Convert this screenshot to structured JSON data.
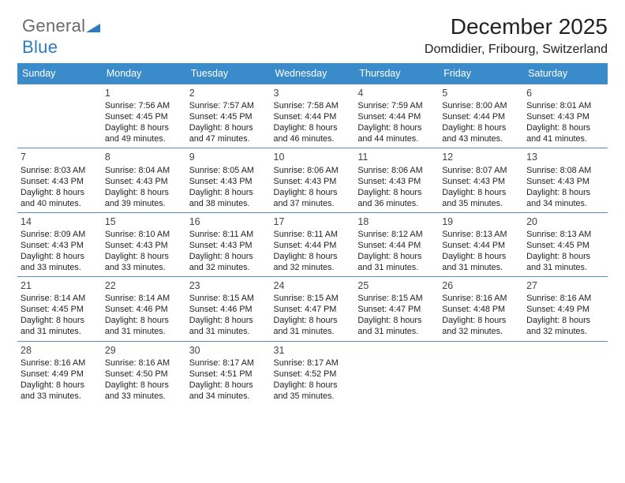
{
  "logo": {
    "g1": "General",
    "g2": "Blue"
  },
  "header": {
    "title": "December 2025",
    "subtitle": "Domdidier, Fribourg, Switzerland"
  },
  "colors": {
    "header_bg": "#3a8bc9",
    "header_fg": "#ffffff",
    "row_border": "#5a8fb9",
    "logo_blue": "#2a7bbf",
    "logo_gray": "#6a6a6a"
  },
  "day_headers": [
    "Sunday",
    "Monday",
    "Tuesday",
    "Wednesday",
    "Thursday",
    "Friday",
    "Saturday"
  ],
  "weeks": [
    [
      {
        "n": "",
        "sr": "",
        "ss": "",
        "dl": ""
      },
      {
        "n": "1",
        "sr": "Sunrise: 7:56 AM",
        "ss": "Sunset: 4:45 PM",
        "dl": "Daylight: 8 hours and 49 minutes."
      },
      {
        "n": "2",
        "sr": "Sunrise: 7:57 AM",
        "ss": "Sunset: 4:45 PM",
        "dl": "Daylight: 8 hours and 47 minutes."
      },
      {
        "n": "3",
        "sr": "Sunrise: 7:58 AM",
        "ss": "Sunset: 4:44 PM",
        "dl": "Daylight: 8 hours and 46 minutes."
      },
      {
        "n": "4",
        "sr": "Sunrise: 7:59 AM",
        "ss": "Sunset: 4:44 PM",
        "dl": "Daylight: 8 hours and 44 minutes."
      },
      {
        "n": "5",
        "sr": "Sunrise: 8:00 AM",
        "ss": "Sunset: 4:44 PM",
        "dl": "Daylight: 8 hours and 43 minutes."
      },
      {
        "n": "6",
        "sr": "Sunrise: 8:01 AM",
        "ss": "Sunset: 4:43 PM",
        "dl": "Daylight: 8 hours and 41 minutes."
      }
    ],
    [
      {
        "n": "7",
        "sr": "Sunrise: 8:03 AM",
        "ss": "Sunset: 4:43 PM",
        "dl": "Daylight: 8 hours and 40 minutes."
      },
      {
        "n": "8",
        "sr": "Sunrise: 8:04 AM",
        "ss": "Sunset: 4:43 PM",
        "dl": "Daylight: 8 hours and 39 minutes."
      },
      {
        "n": "9",
        "sr": "Sunrise: 8:05 AM",
        "ss": "Sunset: 4:43 PM",
        "dl": "Daylight: 8 hours and 38 minutes."
      },
      {
        "n": "10",
        "sr": "Sunrise: 8:06 AM",
        "ss": "Sunset: 4:43 PM",
        "dl": "Daylight: 8 hours and 37 minutes."
      },
      {
        "n": "11",
        "sr": "Sunrise: 8:06 AM",
        "ss": "Sunset: 4:43 PM",
        "dl": "Daylight: 8 hours and 36 minutes."
      },
      {
        "n": "12",
        "sr": "Sunrise: 8:07 AM",
        "ss": "Sunset: 4:43 PM",
        "dl": "Daylight: 8 hours and 35 minutes."
      },
      {
        "n": "13",
        "sr": "Sunrise: 8:08 AM",
        "ss": "Sunset: 4:43 PM",
        "dl": "Daylight: 8 hours and 34 minutes."
      }
    ],
    [
      {
        "n": "14",
        "sr": "Sunrise: 8:09 AM",
        "ss": "Sunset: 4:43 PM",
        "dl": "Daylight: 8 hours and 33 minutes."
      },
      {
        "n": "15",
        "sr": "Sunrise: 8:10 AM",
        "ss": "Sunset: 4:43 PM",
        "dl": "Daylight: 8 hours and 33 minutes."
      },
      {
        "n": "16",
        "sr": "Sunrise: 8:11 AM",
        "ss": "Sunset: 4:43 PM",
        "dl": "Daylight: 8 hours and 32 minutes."
      },
      {
        "n": "17",
        "sr": "Sunrise: 8:11 AM",
        "ss": "Sunset: 4:44 PM",
        "dl": "Daylight: 8 hours and 32 minutes."
      },
      {
        "n": "18",
        "sr": "Sunrise: 8:12 AM",
        "ss": "Sunset: 4:44 PM",
        "dl": "Daylight: 8 hours and 31 minutes."
      },
      {
        "n": "19",
        "sr": "Sunrise: 8:13 AM",
        "ss": "Sunset: 4:44 PM",
        "dl": "Daylight: 8 hours and 31 minutes."
      },
      {
        "n": "20",
        "sr": "Sunrise: 8:13 AM",
        "ss": "Sunset: 4:45 PM",
        "dl": "Daylight: 8 hours and 31 minutes."
      }
    ],
    [
      {
        "n": "21",
        "sr": "Sunrise: 8:14 AM",
        "ss": "Sunset: 4:45 PM",
        "dl": "Daylight: 8 hours and 31 minutes."
      },
      {
        "n": "22",
        "sr": "Sunrise: 8:14 AM",
        "ss": "Sunset: 4:46 PM",
        "dl": "Daylight: 8 hours and 31 minutes."
      },
      {
        "n": "23",
        "sr": "Sunrise: 8:15 AM",
        "ss": "Sunset: 4:46 PM",
        "dl": "Daylight: 8 hours and 31 minutes."
      },
      {
        "n": "24",
        "sr": "Sunrise: 8:15 AM",
        "ss": "Sunset: 4:47 PM",
        "dl": "Daylight: 8 hours and 31 minutes."
      },
      {
        "n": "25",
        "sr": "Sunrise: 8:15 AM",
        "ss": "Sunset: 4:47 PM",
        "dl": "Daylight: 8 hours and 31 minutes."
      },
      {
        "n": "26",
        "sr": "Sunrise: 8:16 AM",
        "ss": "Sunset: 4:48 PM",
        "dl": "Daylight: 8 hours and 32 minutes."
      },
      {
        "n": "27",
        "sr": "Sunrise: 8:16 AM",
        "ss": "Sunset: 4:49 PM",
        "dl": "Daylight: 8 hours and 32 minutes."
      }
    ],
    [
      {
        "n": "28",
        "sr": "Sunrise: 8:16 AM",
        "ss": "Sunset: 4:49 PM",
        "dl": "Daylight: 8 hours and 33 minutes."
      },
      {
        "n": "29",
        "sr": "Sunrise: 8:16 AM",
        "ss": "Sunset: 4:50 PM",
        "dl": "Daylight: 8 hours and 33 minutes."
      },
      {
        "n": "30",
        "sr": "Sunrise: 8:17 AM",
        "ss": "Sunset: 4:51 PM",
        "dl": "Daylight: 8 hours and 34 minutes."
      },
      {
        "n": "31",
        "sr": "Sunrise: 8:17 AM",
        "ss": "Sunset: 4:52 PM",
        "dl": "Daylight: 8 hours and 35 minutes."
      },
      {
        "n": "",
        "sr": "",
        "ss": "",
        "dl": ""
      },
      {
        "n": "",
        "sr": "",
        "ss": "",
        "dl": ""
      },
      {
        "n": "",
        "sr": "",
        "ss": "",
        "dl": ""
      }
    ]
  ]
}
